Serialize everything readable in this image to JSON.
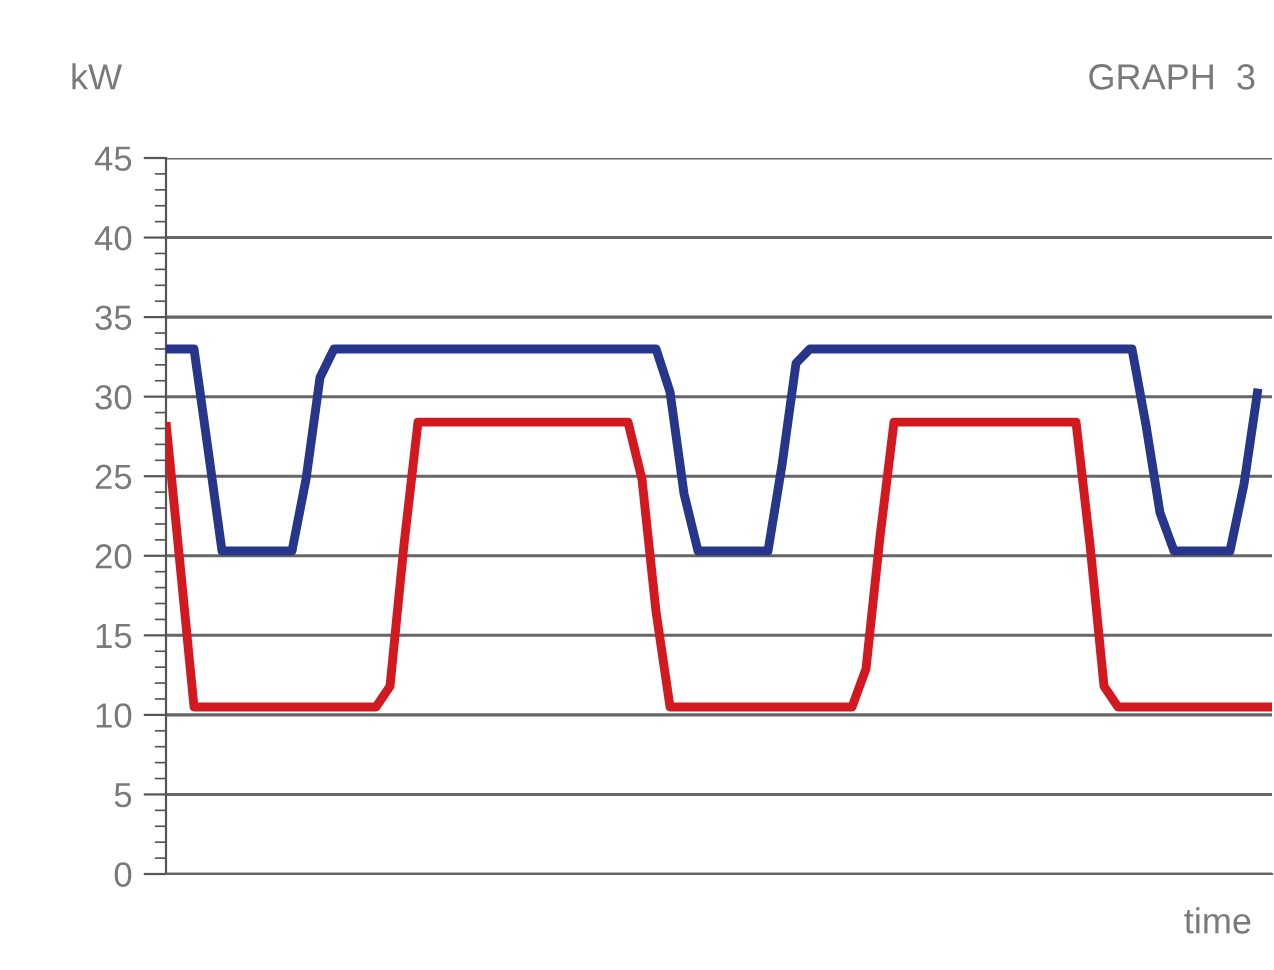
{
  "chart_data": {
    "type": "line",
    "title": "GRAPH  3",
    "ylabel": "kW",
    "xlabel": "time",
    "categories": [
      null,
      null,
      null,
      null,
      null,
      null,
      null,
      null,
      null,
      null,
      null,
      null,
      null,
      null,
      null,
      null,
      null,
      null,
      null,
      null,
      null,
      null,
      null,
      null,
      null,
      null,
      null,
      null,
      null,
      null,
      null,
      null,
      null,
      null,
      null,
      null,
      null,
      null,
      null,
      null,
      null,
      null,
      null,
      null,
      null,
      null,
      null,
      null,
      null,
      null,
      null,
      null,
      null,
      null,
      null,
      null,
      null,
      null,
      null,
      null,
      null,
      null,
      null,
      null,
      null,
      null,
      null,
      null,
      null,
      null,
      null,
      null,
      null,
      null,
      null,
      null,
      null,
      null,
      null,
      null
    ],
    "series": [
      {
        "color": "#27358a",
        "values": [
          33,
          33,
          33,
          26.7,
          20.3,
          20.3,
          20.3,
          20.3,
          20.3,
          20.3,
          24.8,
          31.2,
          33,
          33,
          33,
          33,
          33,
          33,
          33,
          33,
          33,
          33,
          33,
          33,
          33,
          33,
          33,
          33,
          33,
          33,
          33,
          33,
          33,
          33,
          33,
          33,
          30.3,
          23.9,
          20.3,
          20.3,
          20.3,
          20.3,
          20.3,
          20.3,
          25.7,
          32.1,
          33,
          33,
          33,
          33,
          33,
          33,
          33,
          33,
          33,
          33,
          33,
          33,
          33,
          33,
          33,
          33,
          33,
          33,
          33,
          33,
          33,
          33,
          33,
          33,
          28.2,
          22.7,
          20.3,
          20.3,
          20.3,
          20.3,
          20.3,
          24.5,
          30.5,
          null
        ]
      },
      {
        "color": "#d21920",
        "values": [
          28.4,
          19.5,
          10.5,
          10.5,
          10.5,
          10.5,
          10.5,
          10.5,
          10.5,
          10.5,
          10.5,
          10.5,
          10.5,
          10.5,
          10.5,
          10.5,
          11.8,
          20.7,
          28.4,
          28.4,
          28.4,
          28.4,
          28.4,
          28.4,
          28.4,
          28.4,
          28.4,
          28.4,
          28.4,
          28.4,
          28.4,
          28.4,
          28.4,
          28.4,
          24.8,
          16.5,
          10.5,
          10.5,
          10.5,
          10.5,
          10.5,
          10.5,
          10.5,
          10.5,
          10.5,
          10.5,
          10.5,
          10.5,
          10.5,
          10.5,
          12.9,
          21.2,
          28.4,
          28.4,
          28.4,
          28.4,
          28.4,
          28.4,
          28.4,
          28.4,
          28.4,
          28.4,
          28.4,
          28.4,
          28.4,
          28.4,
          20.7,
          11.8,
          10.5,
          10.5,
          10.5,
          10.5,
          10.5,
          10.5,
          10.5,
          10.5,
          10.5,
          10.5,
          10.5,
          10.5
        ]
      }
    ],
    "ylim": [
      0,
      45
    ],
    "yticks": [
      0,
      5,
      10,
      15,
      20,
      25,
      30,
      35,
      40,
      45
    ],
    "grid": "y",
    "tick_labels": "y",
    "line_style": "solid"
  }
}
